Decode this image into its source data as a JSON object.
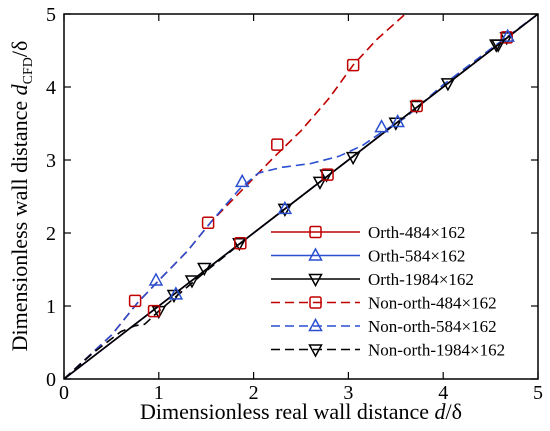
{
  "chart_data": {
    "type": "line",
    "xlabel_parts": [
      "Dimensionless real wall distance ",
      "d",
      "/δ"
    ],
    "ylabel_parts": [
      "Dimensionless wall distance ",
      "d",
      "CFD",
      "/δ"
    ],
    "xlim": [
      0,
      5
    ],
    "ylim": [
      0,
      5
    ],
    "xticks": [
      "0",
      "1",
      "2",
      "3",
      "4",
      "5"
    ],
    "yticks": [
      "0",
      "1",
      "2",
      "3",
      "4",
      "5"
    ],
    "grid": false,
    "legend_position": "lower-right",
    "series": [
      {
        "name": "Orth-484×162",
        "color": "#c00000",
        "dash": "solid",
        "marker": "square",
        "x": [
          0,
          1,
          2,
          3,
          4,
          5
        ],
        "y": [
          0,
          1,
          2,
          3,
          4,
          5
        ],
        "marker_points": []
      },
      {
        "name": "Orth-584×162",
        "color": "#2a4fd0",
        "dash": "solid",
        "marker": "triangle-up",
        "x": [
          0,
          1,
          2,
          3,
          4,
          5
        ],
        "y": [
          0,
          1,
          2,
          3,
          4,
          5
        ],
        "marker_points": []
      },
      {
        "name": "Orth-1984×162",
        "color": "#000000",
        "dash": "solid",
        "marker": "triangle-down",
        "x": [
          0,
          5
        ],
        "y": [
          0,
          5
        ],
        "marker_points": [
          [
            1.0,
            0.93
          ],
          [
            1.16,
            1.15
          ],
          [
            1.35,
            1.35
          ],
          [
            1.48,
            1.52
          ],
          [
            1.85,
            1.86
          ],
          [
            2.33,
            2.33
          ],
          [
            2.7,
            2.7
          ],
          [
            2.77,
            2.8
          ],
          [
            3.05,
            3.04
          ],
          [
            3.5,
            3.51
          ],
          [
            3.72,
            3.74
          ],
          [
            4.05,
            4.05
          ],
          [
            4.56,
            4.58
          ],
          [
            4.67,
            4.68
          ]
        ]
      },
      {
        "name": "Non-orth-484×162",
        "color": "#c00000",
        "dash": "dashed",
        "marker": "square",
        "x": [
          0,
          0.5,
          0.78,
          1.0,
          1.3,
          1.55,
          1.85,
          2.0,
          2.2,
          2.5,
          2.8,
          3.05,
          3.3,
          3.6
        ],
        "y": [
          0,
          0.6,
          1.05,
          1.35,
          1.75,
          2.15,
          2.55,
          2.75,
          3.02,
          3.4,
          3.85,
          4.3,
          4.65,
          5.0
        ],
        "marker_points": [
          [
            0.75,
            1.07
          ],
          [
            0.95,
            0.93
          ],
          [
            1.52,
            2.14
          ],
          [
            1.86,
            1.86
          ],
          [
            2.25,
            3.21
          ],
          [
            2.78,
            2.8
          ],
          [
            3.05,
            4.3
          ],
          [
            3.72,
            3.74
          ],
          [
            4.67,
            4.68
          ]
        ]
      },
      {
        "name": "Non-orth-584×162",
        "color": "#2a4fd0",
        "dash": "dashed",
        "marker": "triangle-up",
        "x": [
          0,
          0.5,
          0.78,
          1.0,
          1.3,
          1.55,
          1.85,
          2.05,
          2.3,
          2.6,
          2.9,
          3.15,
          3.35,
          3.6,
          4.0,
          4.5,
          5.0
        ],
        "y": [
          0,
          0.6,
          1.05,
          1.35,
          1.75,
          2.15,
          2.6,
          2.82,
          2.9,
          2.95,
          3.05,
          3.2,
          3.38,
          3.58,
          4.03,
          4.52,
          5.0
        ],
        "marker_points": [
          [
            0.97,
            1.35
          ],
          [
            1.88,
            2.7
          ],
          [
            1.18,
            1.16
          ],
          [
            2.33,
            2.33
          ],
          [
            3.35,
            3.45
          ],
          [
            3.52,
            3.52
          ],
          [
            4.68,
            4.69
          ]
        ]
      },
      {
        "name": "Non-orth-1984×162",
        "color": "#000000",
        "dash": "dashed",
        "marker": "triangle-down",
        "x": [
          0,
          0.3,
          0.6,
          0.75,
          0.85,
          1.0,
          1.5,
          2.0,
          3.0,
          4.0,
          5.0
        ],
        "y": [
          0,
          0.35,
          0.65,
          0.73,
          0.75,
          0.93,
          1.48,
          2.0,
          3.0,
          4.0,
          5.0
        ],
        "marker_points": [
          [
            4.58,
            4.58
          ]
        ]
      }
    ]
  }
}
